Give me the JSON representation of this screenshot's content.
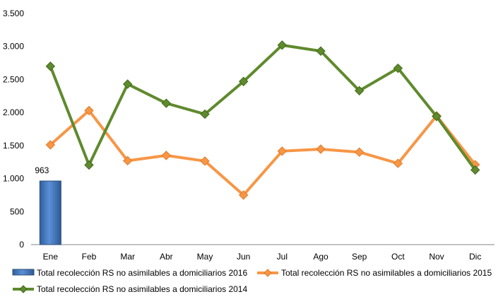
{
  "chart_data": {
    "type": "bar+line",
    "categories": [
      "Ene",
      "Feb",
      "Mar",
      "Abr",
      "May",
      "Jun",
      "Jul",
      "Ago",
      "Sep",
      "Oct",
      "Nov",
      "Dic"
    ],
    "ylim": [
      0,
      3500
    ],
    "yticks": [
      0,
      500,
      1000,
      1500,
      2000,
      2500,
      3000,
      3500
    ],
    "ytick_labels": [
      "0",
      "500",
      "1.000",
      "1.500",
      "2.000",
      "2.500",
      "3.000",
      "3.500"
    ],
    "grid": false,
    "legend_position": "bottom",
    "series": [
      {
        "name": "Total recolección RS no asimilables a domiciliarios 2016",
        "type": "bar",
        "color": "#4a7ebb",
        "values": [
          963,
          null,
          null,
          null,
          null,
          null,
          null,
          null,
          null,
          null,
          null,
          null
        ],
        "data_labels": [
          "963"
        ]
      },
      {
        "name": "Total recolección RS no asimilables a domiciliarios 2015",
        "type": "line",
        "color": "#f79646",
        "values": [
          1510,
          2030,
          1270,
          1350,
          1265,
          750,
          1415,
          1445,
          1400,
          1230,
          1950,
          1210
        ]
      },
      {
        "name": "Total recolección RS no asimilables a domiciliarios 2014",
        "type": "line",
        "color": "#5f8a2d",
        "values": [
          2700,
          1205,
          2430,
          2140,
          1975,
          2470,
          3020,
          2930,
          2330,
          2670,
          1940,
          1130
        ]
      }
    ]
  }
}
